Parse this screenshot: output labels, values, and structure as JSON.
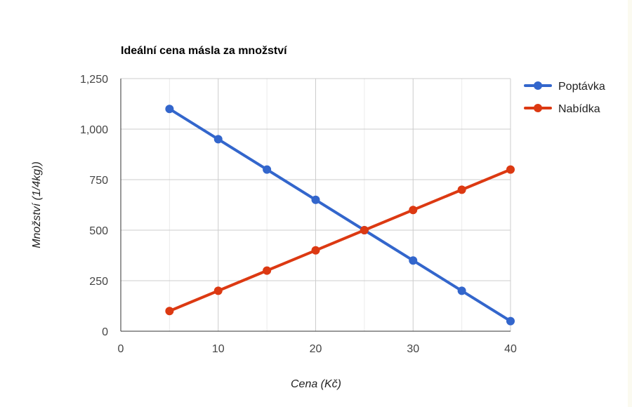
{
  "chart_data": {
    "type": "line",
    "title": "Ideální cena másla za množství",
    "xlabel": "Cena (Kč)",
    "ylabel": "Množství (1/4kg))",
    "xlim": [
      0,
      40
    ],
    "ylim": [
      0,
      1250
    ],
    "x_ticks": [
      0,
      10,
      20,
      30,
      40
    ],
    "y_ticks": [
      0,
      250,
      500,
      750,
      1000,
      1250
    ],
    "x_tick_labels": [
      "0",
      "10",
      "20",
      "30",
      "40"
    ],
    "y_tick_labels": [
      "0",
      "250",
      "500",
      "750",
      "1,000",
      "1,250"
    ],
    "x_minor_step": 5,
    "grid": true,
    "legend_position": "right",
    "x": [
      5,
      10,
      15,
      20,
      25,
      30,
      35,
      40
    ],
    "series": [
      {
        "name": "Poptávka",
        "color": "#3366cc",
        "values": [
          1100,
          950,
          800,
          650,
          500,
          350,
          200,
          50
        ]
      },
      {
        "name": "Nabídka",
        "color": "#dc3912",
        "values": [
          100,
          200,
          300,
          400,
          500,
          600,
          700,
          800
        ]
      }
    ]
  }
}
